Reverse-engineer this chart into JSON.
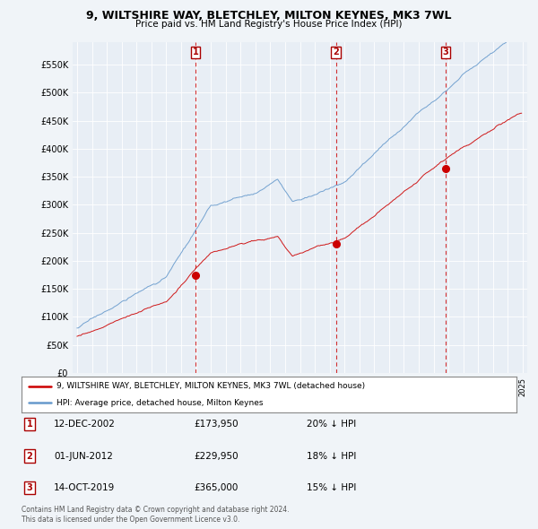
{
  "title": "9, WILTSHIRE WAY, BLETCHLEY, MILTON KEYNES, MK3 7WL",
  "subtitle": "Price paid vs. HM Land Registry's House Price Index (HPI)",
  "ylabel_ticks": [
    "£0",
    "£50K",
    "£100K",
    "£150K",
    "£200K",
    "£250K",
    "£300K",
    "£350K",
    "£400K",
    "£450K",
    "£500K",
    "£550K"
  ],
  "ytick_values": [
    0,
    50000,
    100000,
    150000,
    200000,
    250000,
    300000,
    350000,
    400000,
    450000,
    500000,
    550000
  ],
  "ylim": [
    0,
    590000
  ],
  "sale_color": "#cc0000",
  "hpi_color": "#6699cc",
  "vline_color": "#cc0000",
  "background_color": "#f0f4f8",
  "plot_bg_color": "#e8eef5",
  "legend_border_color": "#aaaaaa",
  "legend_entry1": "9, WILTSHIRE WAY, BLETCHLEY, MILTON KEYNES, MK3 7WL (detached house)",
  "legend_entry2": "HPI: Average price, detached house, Milton Keynes",
  "transactions": [
    {
      "label": "1",
      "date_x": 2002.96,
      "price": 173950,
      "hpi_diff": "20% ↓ HPI",
      "display_date": "12-DEC-2002",
      "display_price": "£173,950"
    },
    {
      "label": "2",
      "date_x": 2012.42,
      "price": 229950,
      "hpi_diff": "18% ↓ HPI",
      "display_date": "01-JUN-2012",
      "display_price": "£229,950"
    },
    {
      "label": "3",
      "date_x": 2019.79,
      "price": 365000,
      "hpi_diff": "15% ↓ HPI",
      "display_date": "14-OCT-2019",
      "display_price": "£365,000"
    }
  ],
  "footer_line1": "Contains HM Land Registry data © Crown copyright and database right 2024.",
  "footer_line2": "This data is licensed under the Open Government Licence v3.0.",
  "xlim_start": 1994.7,
  "xlim_end": 2025.3
}
